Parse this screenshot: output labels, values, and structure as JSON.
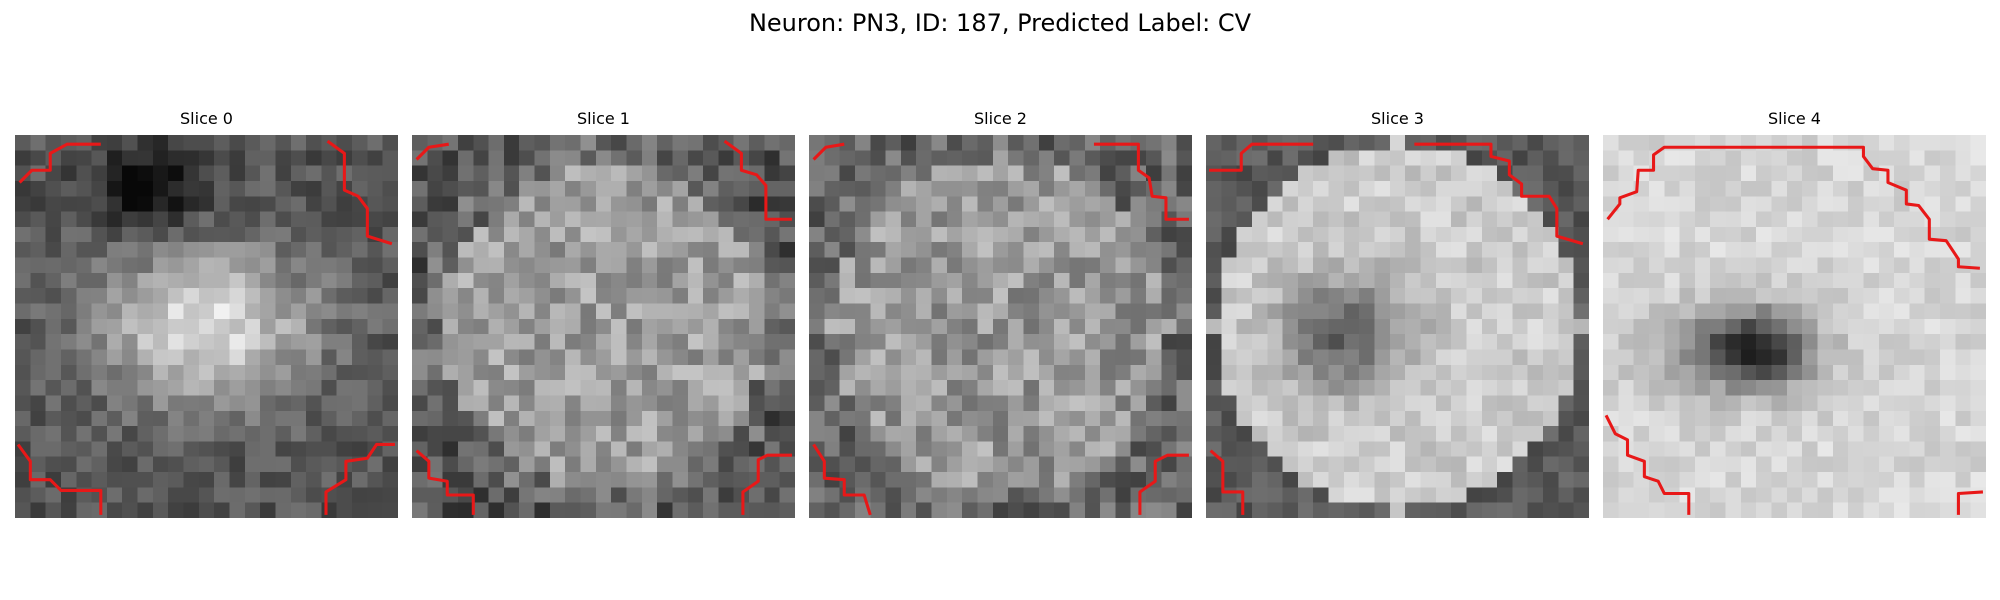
{
  "figure": {
    "title": "Neuron: PN3, ID: 187, Predicted Label: CV"
  },
  "panels": [
    {
      "title": "Slice 0",
      "icon": "grayscale-microscopy-slice",
      "grid_cells": 25,
      "contour_color": "#e81818"
    },
    {
      "title": "Slice 1",
      "icon": "grayscale-microscopy-slice",
      "grid_cells": 25,
      "contour_color": "#e81818"
    },
    {
      "title": "Slice 2",
      "icon": "grayscale-microscopy-slice",
      "grid_cells": 25,
      "contour_color": "#e81818"
    },
    {
      "title": "Slice 3",
      "icon": "grayscale-microscopy-slice",
      "grid_cells": 25,
      "contour_color": "#e81818"
    },
    {
      "title": "Slice 4",
      "icon": "grayscale-microscopy-slice",
      "grid_cells": 25,
      "contour_color": "#e81818"
    }
  ]
}
